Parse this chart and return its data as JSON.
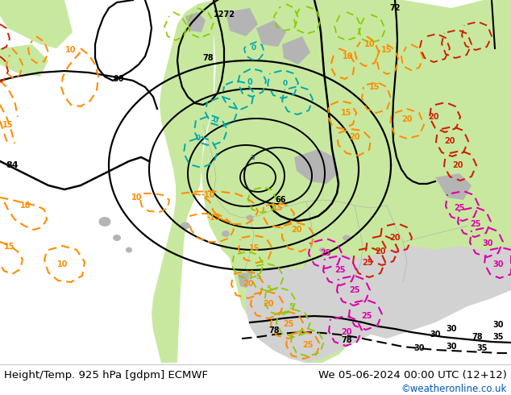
{
  "title_left": "Height/Temp. 925 hPa [gdpm] ECMWF",
  "title_right": "We 05-06-2024 00:00 UTC (12+12)",
  "credit": "©weatheronline.co.uk",
  "bg_ocean": "#d2d2d2",
  "bg_land_light": "#c8e8a0",
  "bg_land_dark": "#b8d890",
  "bg_highland": "#b4b4b4",
  "text_color": "#000000",
  "credit_color": "#0055bb",
  "title_fontsize": 9.5,
  "credit_fontsize": 8.5,
  "figsize": [
    6.34,
    4.9
  ],
  "dpi": 100,
  "black": "#000000",
  "orange": "#ff8c00",
  "lime": "#88cc00",
  "teal": "#00aaaa",
  "red": "#cc2200",
  "magenta": "#dd00aa",
  "gray": "#888888"
}
